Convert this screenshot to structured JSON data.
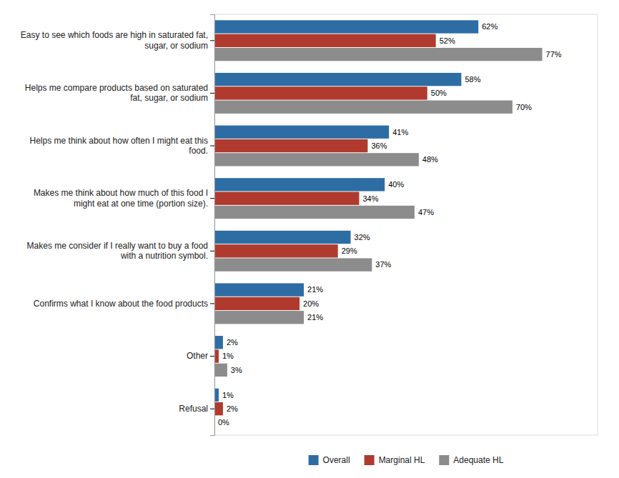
{
  "chart_data": {
    "type": "bar",
    "orientation": "horizontal",
    "categories": [
      "Easy to see which foods are high in saturated fat,\nsugar, or sodium",
      "Helps me compare products based on saturated\nfat, sugar, or sodium",
      "Helps me think about how often I might eat this\nfood.",
      "Makes me think about how much of this food I\nmight eat at one time (portion size).",
      "Makes me consider if I really want to buy a food\nwith a nutrition symbol.",
      "Confirms what I know about the food products",
      "Other",
      "Refusal"
    ],
    "series": [
      {
        "name": "Overall",
        "color": "#2e6da4",
        "values": [
          62,
          58,
          41,
          40,
          32,
          21,
          2,
          1
        ],
        "value_labels": [
          "62%",
          "58%",
          "41%",
          "40%",
          "32%",
          "21%",
          "2%",
          "1%"
        ]
      },
      {
        "name": "Marginal HL",
        "color": "#b03a2e",
        "values": [
          52,
          50,
          36,
          34,
          29,
          20,
          1,
          2
        ],
        "value_labels": [
          "52%",
          "50%",
          "36%",
          "34%",
          "29%",
          "20%",
          "1%",
          "2%"
        ]
      },
      {
        "name": "Adequate HL",
        "color": "#8c8c8c",
        "values": [
          77,
          70,
          48,
          47,
          37,
          21,
          3,
          0
        ],
        "value_labels": [
          "77%",
          "70%",
          "48%",
          "47%",
          "37%",
          "21%",
          "3%",
          "0%"
        ]
      }
    ],
    "xlim": [
      0,
      90
    ],
    "data_labels": true,
    "tick_labels": "y",
    "grid": false,
    "legend": "bottom"
  }
}
